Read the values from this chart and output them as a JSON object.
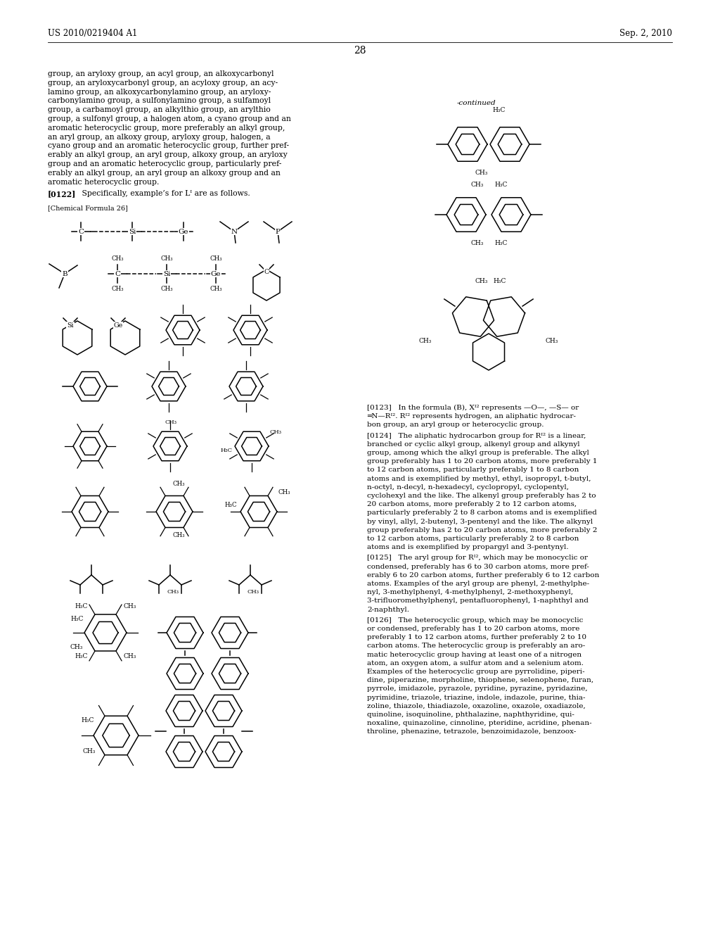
{
  "background_color": "#ffffff",
  "header_left": "US 2010/0219404 A1",
  "header_right": "Sep. 2, 2010",
  "page_number": "28",
  "body_text_left": "group, an aryloxy group, an acyl group, an alkoxycarbonyl\ngroup, an aryloxycarbonyl group, an acyloxy group, an acy-\nlamino group, an alkoxycarbonylamino group, an aryloxy-\ncarbonylamino group, a sulfonylamino group, a sulfamoyl\ngroup, a carbamoyl group, an alkylthio group, an arylthio\ngroup, a sulfonyl group, a halogen atom, a cyano group and an\naromatic heterocyclic group, more preferably an alkyl group,\nan aryl group, an alkoxy group, aryloxy group, halogen, a\ncyano group and an aromatic heterocyclic group, further pref-\nerably an alkyl group, an aryl group, alkoxy group, an aryloxy\ngroup and an aromatic heterocyclic group, particularly pref-\nerably an alkyl group, an aryl group an alkoxy group and an\naromatic heterocyclic group.",
  "para_0122_bold": "[0122]",
  "para_0122_rest": "   Specifically, example’s for Lᴵ are as follows.",
  "chem_formula_label": "[Chemical Formula 26]",
  "right_continued": "-continued",
  "right_para_0123": "[0123]   In the formula (B), Xᴵ² represents —O—, —S— or\n═N—Rᴵ². Rᴵ² represents hydrogen, an aliphatic hydrocar-\nbon group, an aryl group or heterocyclic group.",
  "right_para_0124": "[0124]   The aliphatic hydrocarbon group for Rᴵ² is a linear,\nbranched or cyclic alkyl group, alkenyl group and alkynyl\ngroup, among which the alkyl group is preferable. The alkyl\ngroup preferably has 1 to 20 carbon atoms, more preferably 1\nto 12 carbon atoms, particularly preferably 1 to 8 carbon\natoms and is exemplified by methyl, ethyl, isopropyl, t-butyl,\nn-octyl, n-decyl, n-hexadecyl, cyclopropyl, cyclopentyl,\ncyclohexyl and the like. The alkenyl group preferably has 2 to\n20 carbon atoms, more preferably 2 to 12 carbon atoms,\nparticularly preferably 2 to 8 carbon atoms and is exemplified\nby vinyl, allyl, 2-butenyl, 3-pentenyl and the like. The alkynyl\ngroup preferably has 2 to 20 carbon atoms, more preferably 2\nto 12 carbon atoms, particularly preferably 2 to 8 carbon\natoms and is exemplified by propargyl and 3-pentynyl.",
  "right_para_0125": "[0125]   The aryl group for Rᴵ², which may be monocyclic or\ncondensed, preferably has 6 to 30 carbon atoms, more pref-\nerably 6 to 20 carbon atoms, further preferably 6 to 12 carbon\natoms. Examples of the aryl group are phenyl, 2-methylphe-\nnyl, 3-methylphenyl, 4-methylphenyl, 2-methoxyphenyl,\n3-trifluoromethylphenyl, pentafluorophenyl, 1-naphthyl and\n2-naphthyl.",
  "right_para_0126": "[0126]   The heterocyclic group, which may be monocyclic\nor condensed, preferably has 1 to 20 carbon atoms, more\npreferably 1 to 12 carbon atoms, further preferably 2 to 10\ncarbon atoms. The heterocyclic group is preferably an aro-\nmatic heterocyclic group having at least one of a nitrogen\natom, an oxygen atom, a sulfur atom and a selenium atom.\nExamples of the heterocyclic group are pyrrolidine, piperi-\ndine, piperazine, morpholine, thiophene, selenophene, furan,\npyrrole, imidazole, pyrazole, pyridine, pyrazine, pyridazine,\npyrimidine, triazole, triazine, indole, indazole, purine, thia-\nzoline, thiazole, thiadiazole, oxazoline, oxazole, oxadiazole,\nquinoline, isoquinoline, phthalazine, naphthyridine, qui-\nnoxaline, quinazoline, cinnoline, pteridine, acridine, phenan-\nthroline, phenazine, tetrazole, benzoimidazole, benzoox-"
}
